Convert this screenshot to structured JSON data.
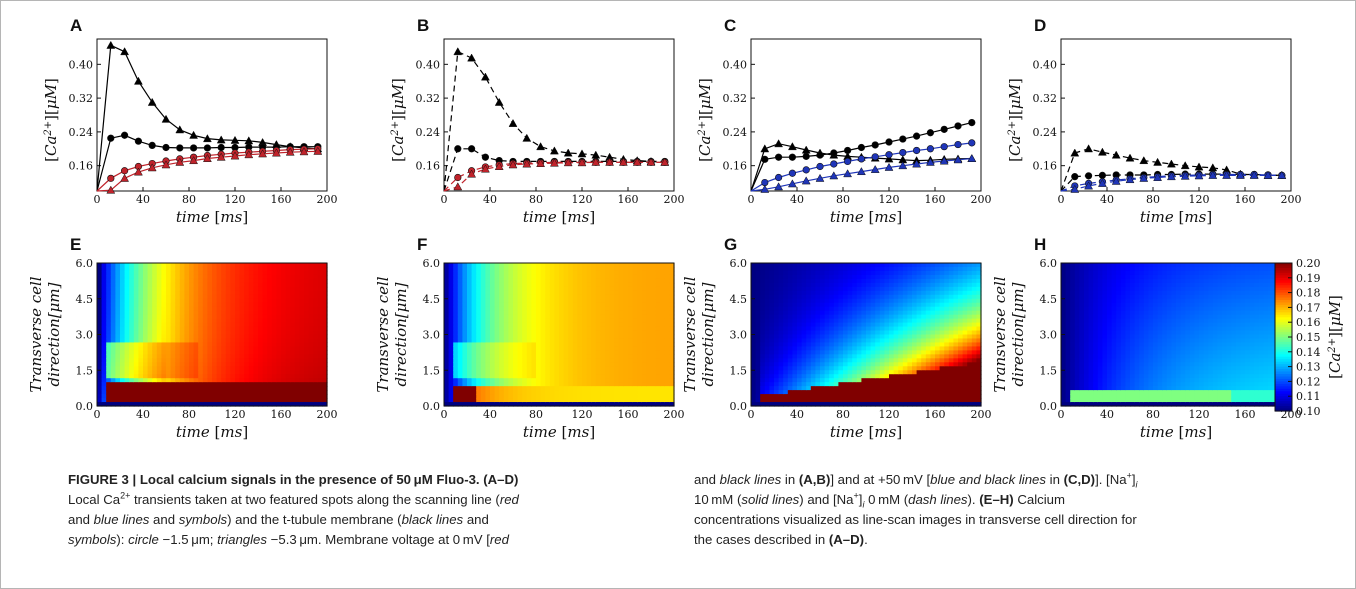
{
  "figure": {
    "x_axis_label": "time [ms]",
    "line_y_label": "[Ca2+][μM]",
    "heatmap_y_label_line1": "Transverse cell",
    "heatmap_y_label_line2": "direction[μm]",
    "colorbar_label": "[Ca2+][μM]",
    "colorbar_ticks": [
      "0.20",
      "0.19",
      "0.18",
      "0.17",
      "0.16",
      "0.15",
      "0.14",
      "0.13",
      "0.12",
      "0.11",
      "0.10"
    ],
    "colors": {
      "red": "#c0232b",
      "blue": "#1f35b8",
      "black": "#000000"
    }
  },
  "chart_data": [
    {
      "panel": "A",
      "type": "line",
      "xlim": [
        0,
        200
      ],
      "ylim": [
        0.1,
        0.46
      ],
      "xticks": [
        "0",
        "40",
        "80",
        "120",
        "160",
        "200"
      ],
      "yticks": [
        "0.16",
        "0.24",
        "0.32",
        "0.40"
      ],
      "series": [
        {
          "color": "black",
          "style": "solid",
          "marker": "triangle",
          "x": [
            0,
            12,
            24,
            36,
            48,
            60,
            72,
            84,
            96,
            108,
            120,
            132,
            144,
            156,
            168,
            180,
            192
          ],
          "y": [
            0.1,
            0.445,
            0.43,
            0.36,
            0.31,
            0.27,
            0.245,
            0.232,
            0.224,
            0.221,
            0.22,
            0.219,
            0.215,
            0.21,
            0.205,
            0.202,
            0.2
          ]
        },
        {
          "color": "black",
          "style": "solid",
          "marker": "circle",
          "x": [
            0,
            12,
            24,
            36,
            48,
            60,
            72,
            84,
            96,
            108,
            120,
            132,
            144,
            156,
            168,
            180,
            192
          ],
          "y": [
            0.1,
            0.225,
            0.232,
            0.218,
            0.208,
            0.203,
            0.202,
            0.202,
            0.202,
            0.203,
            0.203,
            0.204,
            0.204,
            0.204,
            0.205,
            0.205,
            0.205
          ]
        },
        {
          "color": "red",
          "style": "solid",
          "marker": "circle",
          "x": [
            0,
            12,
            24,
            36,
            48,
            60,
            72,
            84,
            96,
            108,
            120,
            132,
            144,
            156,
            168,
            180,
            192
          ],
          "y": [
            0.1,
            0.13,
            0.148,
            0.158,
            0.165,
            0.171,
            0.176,
            0.18,
            0.184,
            0.187,
            0.19,
            0.192,
            0.194,
            0.196,
            0.198,
            0.199,
            0.2
          ]
        },
        {
          "color": "red",
          "style": "solid",
          "marker": "triangle",
          "x": [
            0,
            12,
            24,
            36,
            48,
            60,
            72,
            84,
            96,
            108,
            120,
            132,
            144,
            156,
            168,
            180,
            192
          ],
          "y": [
            0.1,
            0.102,
            0.13,
            0.145,
            0.155,
            0.162,
            0.168,
            0.172,
            0.177,
            0.18,
            0.183,
            0.186,
            0.188,
            0.19,
            0.192,
            0.193,
            0.194
          ]
        }
      ]
    },
    {
      "panel": "B",
      "type": "line",
      "xlim": [
        0,
        200
      ],
      "ylim": [
        0.1,
        0.46
      ],
      "xticks": [
        "0",
        "40",
        "80",
        "120",
        "160",
        "200"
      ],
      "yticks": [
        "0.16",
        "0.24",
        "0.32",
        "0.40"
      ],
      "series": [
        {
          "color": "black",
          "style": "dashed",
          "marker": "triangle",
          "x": [
            0,
            12,
            24,
            36,
            48,
            60,
            72,
            84,
            96,
            108,
            120,
            132,
            144,
            156,
            168,
            180,
            192
          ],
          "y": [
            0.1,
            0.43,
            0.415,
            0.37,
            0.31,
            0.26,
            0.225,
            0.205,
            0.195,
            0.19,
            0.188,
            0.185,
            0.18,
            0.175,
            0.172,
            0.17,
            0.168
          ]
        },
        {
          "color": "black",
          "style": "dashed",
          "marker": "circle",
          "x": [
            0,
            12,
            24,
            36,
            48,
            60,
            72,
            84,
            96,
            108,
            120,
            132,
            144,
            156,
            168,
            180,
            192
          ],
          "y": [
            0.1,
            0.2,
            0.2,
            0.18,
            0.172,
            0.17,
            0.17,
            0.17,
            0.17,
            0.17,
            0.17,
            0.17,
            0.17,
            0.17,
            0.17,
            0.17,
            0.17
          ]
        },
        {
          "color": "red",
          "style": "dashed",
          "marker": "circle",
          "x": [
            0,
            12,
            24,
            36,
            48,
            60,
            72,
            84,
            96,
            108,
            120,
            132,
            144,
            156,
            168,
            180,
            192
          ],
          "y": [
            0.1,
            0.132,
            0.148,
            0.157,
            0.162,
            0.165,
            0.166,
            0.167,
            0.168,
            0.168,
            0.168,
            0.168,
            0.168,
            0.168,
            0.168,
            0.168,
            0.168
          ]
        },
        {
          "color": "red",
          "style": "dashed",
          "marker": "triangle",
          "x": [
            0,
            12,
            24,
            36,
            48,
            60,
            72,
            84,
            96,
            108,
            120,
            132,
            144,
            156,
            168,
            180,
            192
          ],
          "y": [
            0.1,
            0.11,
            0.14,
            0.152,
            0.158,
            0.162,
            0.164,
            0.165,
            0.166,
            0.167,
            0.167,
            0.168,
            0.168,
            0.168,
            0.168,
            0.168,
            0.168
          ]
        }
      ]
    },
    {
      "panel": "C",
      "type": "line",
      "xlim": [
        0,
        200
      ],
      "ylim": [
        0.1,
        0.46
      ],
      "xticks": [
        "0",
        "40",
        "80",
        "120",
        "160",
        "200"
      ],
      "yticks": [
        "0.16",
        "0.24",
        "0.32",
        "0.40"
      ],
      "series": [
        {
          "color": "black",
          "style": "solid",
          "marker": "triangle",
          "x": [
            0,
            12,
            24,
            36,
            48,
            60,
            72,
            84,
            96,
            108,
            120,
            132,
            144,
            156,
            168,
            180,
            192
          ],
          "y": [
            0.1,
            0.2,
            0.212,
            0.205,
            0.197,
            0.19,
            0.185,
            0.182,
            0.18,
            0.178,
            0.176,
            0.174,
            0.172,
            0.173,
            0.175,
            0.176,
            0.177
          ]
        },
        {
          "color": "black",
          "style": "solid",
          "marker": "circle",
          "x": [
            0,
            12,
            24,
            36,
            48,
            60,
            72,
            84,
            96,
            108,
            120,
            132,
            144,
            156,
            168,
            180,
            192
          ],
          "y": [
            0.1,
            0.175,
            0.18,
            0.18,
            0.182,
            0.185,
            0.19,
            0.196,
            0.203,
            0.209,
            0.216,
            0.223,
            0.23,
            0.238,
            0.246,
            0.254,
            0.262
          ]
        },
        {
          "color": "blue",
          "style": "solid",
          "marker": "circle",
          "x": [
            0,
            12,
            24,
            36,
            48,
            60,
            72,
            84,
            96,
            108,
            120,
            132,
            144,
            156,
            168,
            180,
            192
          ],
          "y": [
            0.1,
            0.12,
            0.132,
            0.142,
            0.15,
            0.158,
            0.164,
            0.17,
            0.176,
            0.181,
            0.186,
            0.191,
            0.196,
            0.2,
            0.205,
            0.21,
            0.214
          ]
        },
        {
          "color": "blue",
          "style": "solid",
          "marker": "triangle",
          "x": [
            0,
            12,
            24,
            36,
            48,
            60,
            72,
            84,
            96,
            108,
            120,
            132,
            144,
            156,
            168,
            180,
            192
          ],
          "y": [
            0.1,
            0.104,
            0.11,
            0.117,
            0.124,
            0.13,
            0.136,
            0.141,
            0.146,
            0.151,
            0.156,
            0.16,
            0.164,
            0.168,
            0.171,
            0.174,
            0.177
          ]
        }
      ]
    },
    {
      "panel": "D",
      "type": "line",
      "xlim": [
        0,
        200
      ],
      "ylim": [
        0.1,
        0.46
      ],
      "xticks": [
        "0",
        "40",
        "80",
        "120",
        "160",
        "200"
      ],
      "yticks": [
        "0.16",
        "0.24",
        "0.32",
        "0.40"
      ],
      "series": [
        {
          "color": "black",
          "style": "dashed",
          "marker": "triangle",
          "x": [
            0,
            12,
            24,
            36,
            48,
            60,
            72,
            84,
            96,
            108,
            120,
            132,
            144,
            156,
            168,
            180,
            192
          ],
          "y": [
            0.1,
            0.19,
            0.2,
            0.192,
            0.185,
            0.178,
            0.172,
            0.168,
            0.164,
            0.16,
            0.157,
            0.155,
            0.15,
            0.14,
            0.138,
            0.137,
            0.137
          ]
        },
        {
          "color": "black",
          "style": "dashed",
          "marker": "circle",
          "x": [
            0,
            12,
            24,
            36,
            48,
            60,
            72,
            84,
            96,
            108,
            120,
            132,
            144,
            156,
            168,
            180,
            192
          ],
          "y": [
            0.1,
            0.134,
            0.136,
            0.137,
            0.138,
            0.138,
            0.138,
            0.139,
            0.139,
            0.14,
            0.14,
            0.14,
            0.14,
            0.139,
            0.139,
            0.138,
            0.137
          ]
        },
        {
          "color": "blue",
          "style": "dashed",
          "marker": "circle",
          "x": [
            0,
            12,
            24,
            36,
            48,
            60,
            72,
            84,
            96,
            108,
            120,
            132,
            144,
            156,
            168,
            180,
            192
          ],
          "y": [
            0.1,
            0.112,
            0.118,
            0.122,
            0.126,
            0.129,
            0.132,
            0.134,
            0.136,
            0.137,
            0.138,
            0.139,
            0.139,
            0.139,
            0.139,
            0.138,
            0.137
          ]
        },
        {
          "color": "blue",
          "style": "dashed",
          "marker": "triangle",
          "x": [
            0,
            12,
            24,
            36,
            48,
            60,
            72,
            84,
            96,
            108,
            120,
            132,
            144,
            156,
            168,
            180,
            192
          ],
          "y": [
            0.1,
            0.104,
            0.112,
            0.118,
            0.123,
            0.127,
            0.13,
            0.132,
            0.134,
            0.135,
            0.136,
            0.137,
            0.137,
            0.137,
            0.137,
            0.137,
            0.137
          ]
        }
      ]
    },
    {
      "panel": "E",
      "type": "heatmap",
      "xlim": [
        0,
        200
      ],
      "ylim": [
        0,
        6
      ],
      "xticks": [
        "0",
        "40",
        "80",
        "120",
        "160",
        "200"
      ],
      "yticks": [
        "0.0",
        "1.5",
        "3.0",
        "4.5",
        "6.0"
      ],
      "zlim": [
        0.1,
        0.2
      ],
      "case": "A"
    },
    {
      "panel": "F",
      "type": "heatmap",
      "xlim": [
        0,
        200
      ],
      "ylim": [
        0,
        6
      ],
      "xticks": [
        "0",
        "40",
        "80",
        "120",
        "160",
        "200"
      ],
      "yticks": [
        "0.0",
        "1.5",
        "3.0",
        "4.5",
        "6.0"
      ],
      "zlim": [
        0.1,
        0.2
      ],
      "case": "B"
    },
    {
      "panel": "G",
      "type": "heatmap",
      "xlim": [
        0,
        200
      ],
      "ylim": [
        0,
        6
      ],
      "xticks": [
        "0",
        "40",
        "80",
        "120",
        "160",
        "200"
      ],
      "yticks": [
        "0.0",
        "1.5",
        "3.0",
        "4.5",
        "6.0"
      ],
      "zlim": [
        0.1,
        0.2
      ],
      "case": "C"
    },
    {
      "panel": "H",
      "type": "heatmap",
      "xlim": [
        0,
        200
      ],
      "ylim": [
        0,
        6
      ],
      "xticks": [
        "0",
        "40",
        "80",
        "120",
        "160",
        "200"
      ],
      "yticks": [
        "0.0",
        "1.5",
        "3.0",
        "4.5",
        "6.0"
      ],
      "zlim": [
        0.1,
        0.2
      ],
      "case": "D"
    }
  ],
  "caption": {
    "col1": {
      "title": "FIGURE 3 | Local calcium signals in the presence of 50 μM Fluo-3. (A–D)",
      "l2_a": "Local Ca",
      "l2_sup": "2+",
      "l2_b": " transients taken at two featured spots along the scanning line (",
      "l2_red": "red",
      "l3_a": "and ",
      "l3_blue": "blue lines",
      "l3_b": " and ",
      "l3_symbols": "symbols",
      "l3_c": ") and the t-tubule membrane (",
      "l3_black": "black lines",
      "l3_d": " and",
      "l4_symbols": "symbols",
      "l4_a": "): ",
      "l4_circle": "circle",
      "l4_b": " −1.5 μm; ",
      "l4_triangles": "triangles",
      "l4_c": " −5.3 μm. Membrane voltage at 0 mV [",
      "l4_red": "red"
    },
    "col2": {
      "l1_a": "and ",
      "l1_black": "black lines",
      "l1_b": " in ",
      "l1_ab": "(A,B)",
      "l1_c": "] and at +50 mV [",
      "l1_blue_black": "blue and black lines",
      "l1_d": " in ",
      "l1_cd": "(C,D)",
      "l1_e": "]. [Na",
      "l1_sup": "+",
      "l1_f": "]",
      "l1_sub": "i",
      "l2_a": "10 mM (",
      "l2_solid": "solid lines",
      "l2_b": ") and [Na",
      "l2_sup": "+",
      "l2_c": "]",
      "l2_sub": "i",
      "l2_d": " 0 mM (",
      "l2_dash": "dash lines",
      "l2_e": "). ",
      "l2_eh": "(E–H)",
      "l2_f": " Calcium",
      "l3": "concentrations visualized as line-scan images in transverse cell direction for",
      "l4_a": "the cases described in ",
      "l4_ad": "(A–D)",
      "l4_b": "."
    }
  }
}
